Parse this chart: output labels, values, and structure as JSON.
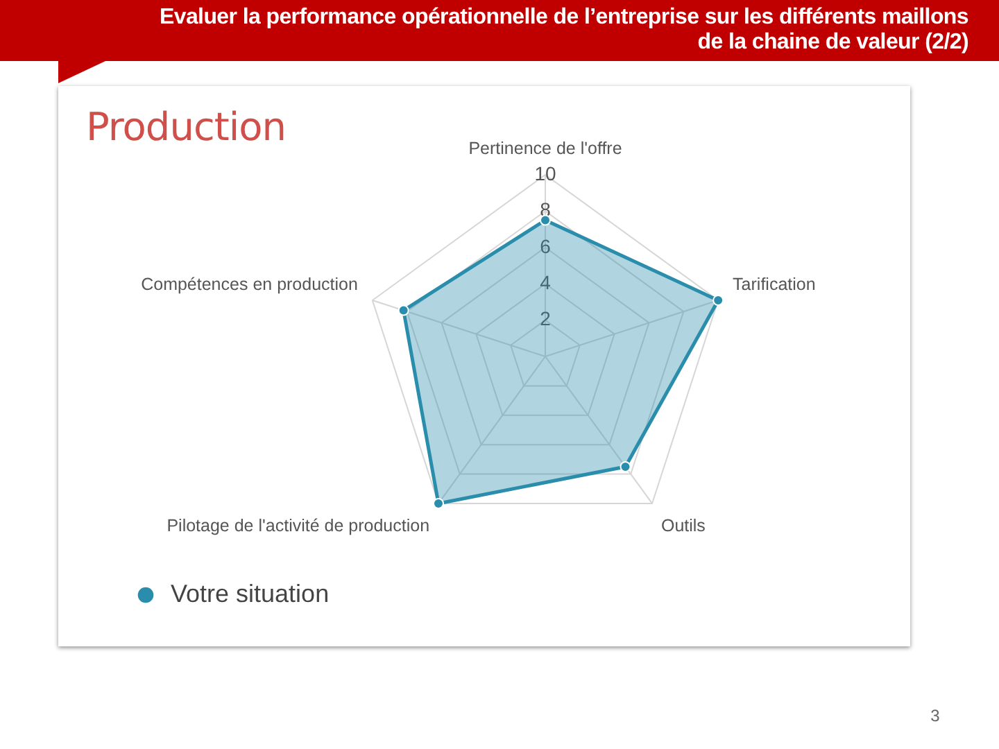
{
  "chart_data": {
    "type": "radar",
    "title": "Evaluer la performance opérationnelle de l’entreprise sur les différents maillons de la chaine de valeur (2/2)",
    "subtitle": "Production",
    "categories": [
      "Pertinence de l'offre",
      "Tarification",
      "Outils",
      "Pilotage de l'activité de production",
      "Compétences en production"
    ],
    "series": [
      {
        "name": "Votre situation",
        "color": "#2a8dab",
        "values": [
          7.5,
          10,
          7.5,
          10,
          8.2
        ]
      }
    ],
    "ylim": [
      0,
      10
    ],
    "yticks": [
      2,
      4,
      6,
      8,
      10
    ],
    "grid": true,
    "legend": "bottom left",
    "marker": "circle",
    "annotations": [
      "3"
    ]
  }
}
